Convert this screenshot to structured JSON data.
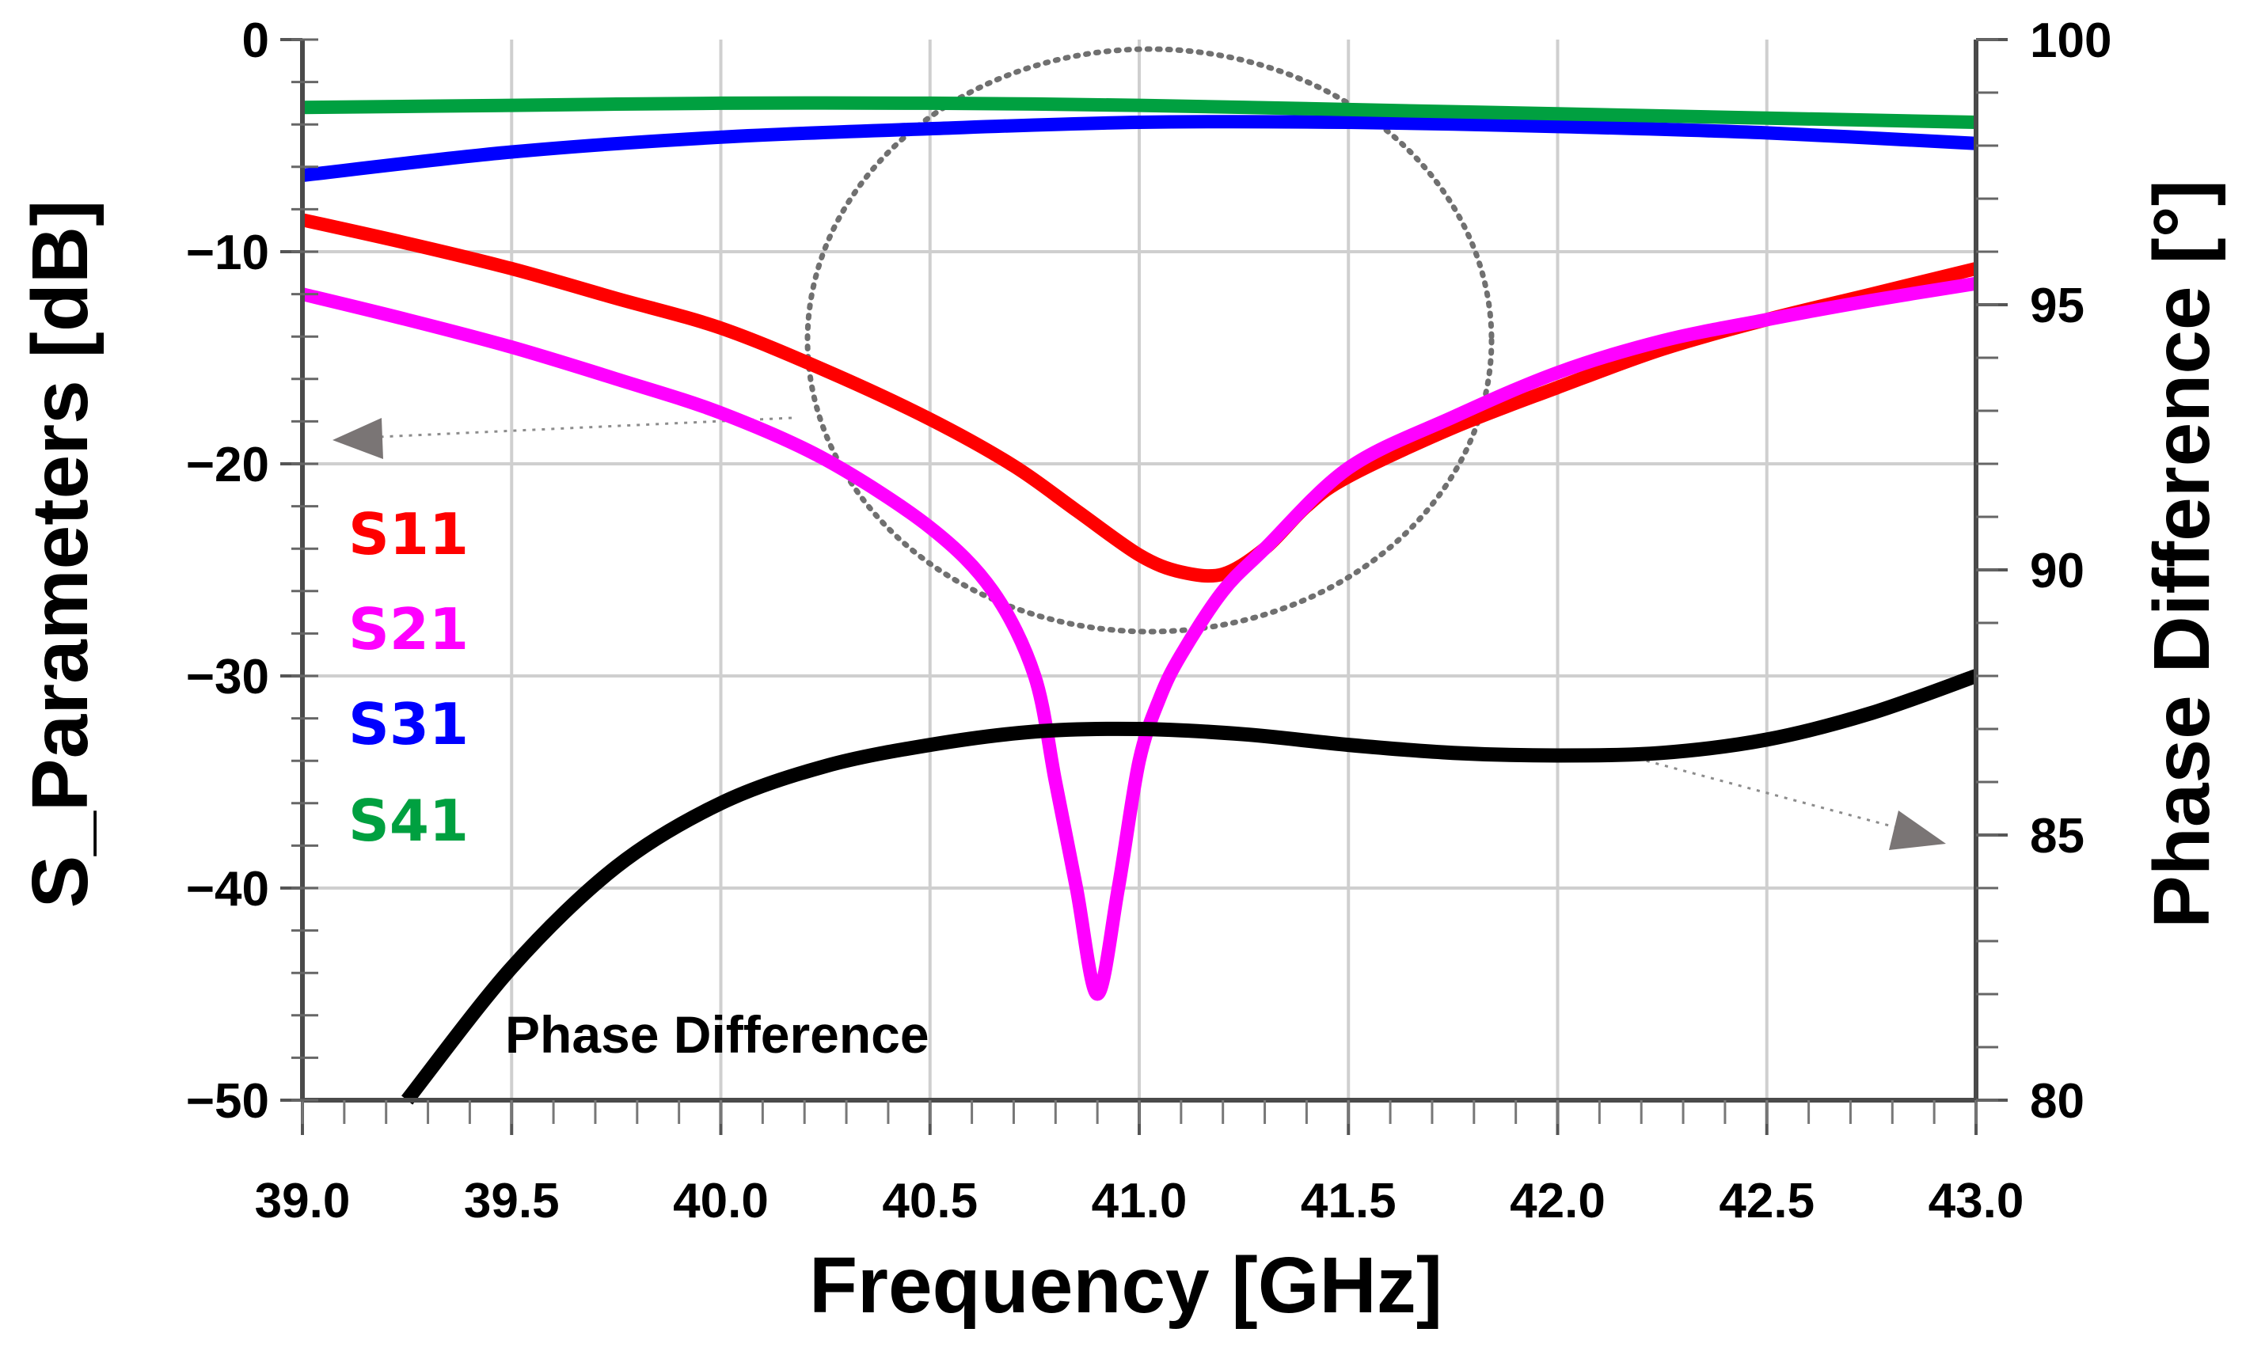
{
  "chart_data": {
    "type": "line",
    "title": "",
    "xlabel": "Frequency [GHz]",
    "ylabel": "S_Parameters [dB]",
    "y2label": "Phase Difference [°]",
    "xlim": [
      39.0,
      43.0
    ],
    "ylim": [
      -50,
      0
    ],
    "y2lim": [
      80,
      100
    ],
    "xticks": [
      "39.0",
      "39.5",
      "40.0",
      "40.5",
      "41.0",
      "41.5",
      "42.0",
      "42.5",
      "43.0"
    ],
    "yticks": [
      "0",
      "−10",
      "−20",
      "−30",
      "−40",
      "−50"
    ],
    "y2ticks": [
      "100",
      "95",
      "90",
      "85",
      "80"
    ],
    "grid": true,
    "legend_position": "left-middle",
    "series": [
      {
        "name": "S11",
        "axis": "left",
        "color": "#ff0000",
        "x": [
          39.0,
          39.25,
          39.5,
          39.75,
          40.0,
          40.25,
          40.5,
          40.7,
          40.85,
          41.0,
          41.1,
          41.2,
          41.3,
          41.4,
          41.5,
          41.75,
          42.0,
          42.25,
          42.5,
          42.75,
          43.0
        ],
        "y": [
          -8.5,
          -9.6,
          -10.8,
          -12.2,
          -13.6,
          -15.6,
          -17.9,
          -20.1,
          -22.2,
          -24.3,
          -25.1,
          -25.2,
          -24.0,
          -22.0,
          -20.6,
          -18.3,
          -16.4,
          -14.6,
          -13.2,
          -12.0,
          -10.8
        ]
      },
      {
        "name": "S21",
        "axis": "left",
        "color": "#ff00ff",
        "x": [
          39.0,
          39.25,
          39.5,
          39.75,
          40.0,
          40.25,
          40.5,
          40.65,
          40.75,
          40.8,
          40.85,
          40.9,
          40.95,
          41.0,
          41.05,
          41.1,
          41.2,
          41.3,
          41.5,
          41.75,
          42.0,
          42.25,
          42.5,
          42.75,
          43.0
        ],
        "y": [
          -12.0,
          -13.2,
          -14.5,
          -16.0,
          -17.6,
          -19.8,
          -23.0,
          -26.0,
          -30.0,
          -35.0,
          -40.0,
          -45.0,
          -40.0,
          -34.0,
          -31.0,
          -29.0,
          -26.0,
          -24.0,
          -20.2,
          -17.8,
          -15.7,
          -14.2,
          -13.2,
          -12.3,
          -11.5
        ]
      },
      {
        "name": "S31",
        "axis": "left",
        "color": "#0000ff",
        "x": [
          39.0,
          39.5,
          40.0,
          40.5,
          41.0,
          41.5,
          42.0,
          42.5,
          43.0
        ],
        "y": [
          -6.4,
          -5.3,
          -4.6,
          -4.2,
          -3.9,
          -3.9,
          -4.1,
          -4.4,
          -4.9
        ]
      },
      {
        "name": "S41",
        "axis": "left",
        "color": "#00a040",
        "x": [
          39.0,
          39.5,
          40.0,
          40.5,
          41.0,
          41.5,
          42.0,
          42.5,
          43.0
        ],
        "y": [
          -3.2,
          -3.1,
          -3.0,
          -3.0,
          -3.1,
          -3.3,
          -3.5,
          -3.7,
          -3.9
        ]
      },
      {
        "name": "Phase Difference",
        "axis": "right",
        "color": "#000000",
        "x": [
          39.25,
          39.5,
          39.75,
          40.0,
          40.25,
          40.5,
          40.75,
          41.0,
          41.25,
          41.5,
          41.75,
          42.0,
          42.25,
          42.5,
          42.75,
          43.0
        ],
        "y": [
          80.0,
          82.5,
          84.4,
          85.6,
          86.3,
          86.7,
          86.95,
          87.0,
          86.9,
          86.7,
          86.55,
          86.5,
          86.55,
          86.8,
          87.3,
          88.0
        ]
      }
    ],
    "legend": [
      {
        "label": "S11",
        "color": "#ff0000"
      },
      {
        "label": "S21",
        "color": "#ff00ff"
      },
      {
        "label": "S31",
        "color": "#0000ff"
      },
      {
        "label": "S41",
        "color": "#00a040"
      }
    ],
    "annotations": [
      {
        "text": "Phase Difference"
      }
    ]
  }
}
